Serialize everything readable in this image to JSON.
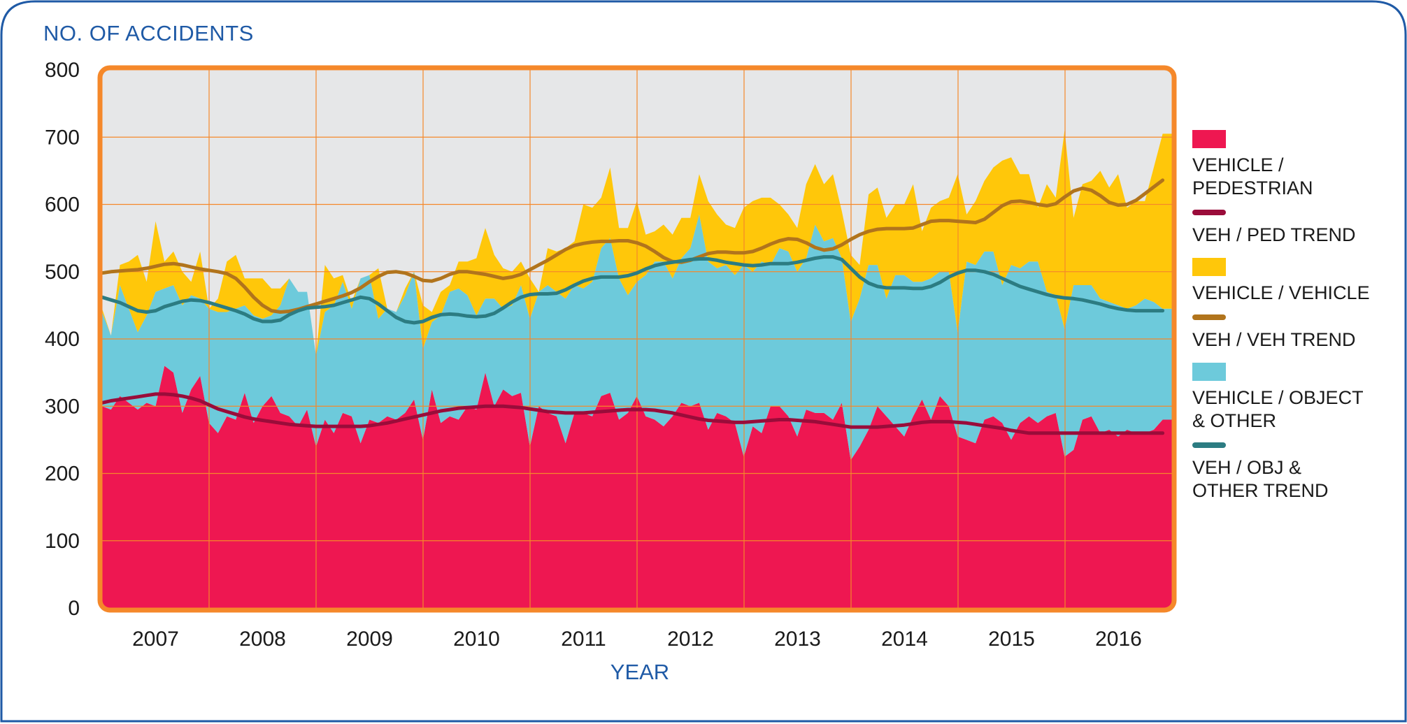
{
  "colors": {
    "pedestrian": "#ee1751",
    "vehicle": "#ffc70a",
    "object": "#6dcadb",
    "ped_trend": "#9a0c3a",
    "veh_trend": "#b1741c",
    "obj_trend": "#2c7c82",
    "plot_bg": "#e6e7e8",
    "plot_border": "#f5882a",
    "grid": "#f5882a",
    "frame": "#1f5aa6",
    "axis_text": "#1f5aa6"
  },
  "chart_data": {
    "type": "area",
    "title": "",
    "ylabel": "NO. OF ACCIDENTS",
    "xlabel": "YEAR",
    "ylim": [
      0,
      800
    ],
    "yticks": [
      0,
      100,
      200,
      300,
      400,
      500,
      600,
      700,
      800
    ],
    "xlim": [
      2006.5,
      2016.5
    ],
    "xticks": [
      2007,
      2008,
      2009,
      2010,
      2011,
      2012,
      2013,
      2014,
      2015,
      2016
    ],
    "stacked": true,
    "grid": true,
    "legend_position": "right",
    "x_start": 2006.5,
    "x_step": 0.0833,
    "series": [
      {
        "name": "VEHICLE / PEDESTRIAN",
        "kind": "area",
        "color_key": "pedestrian",
        "values": [
          300,
          295,
          315,
          305,
          295,
          305,
          300,
          360,
          350,
          290,
          325,
          345,
          275,
          260,
          285,
          280,
          320,
          275,
          300,
          315,
          290,
          285,
          270,
          295,
          240,
          280,
          260,
          290,
          285,
          245,
          280,
          275,
          285,
          280,
          290,
          310,
          250,
          325,
          275,
          285,
          280,
          300,
          295,
          350,
          300,
          325,
          315,
          320,
          240,
          300,
          290,
          285,
          245,
          290,
          290,
          285,
          315,
          320,
          280,
          290,
          315,
          285,
          280,
          270,
          285,
          305,
          300,
          305,
          265,
          290,
          285,
          275,
          225,
          270,
          260,
          300,
          300,
          285,
          255,
          295,
          290,
          290,
          280,
          305,
          220,
          240,
          265,
          300,
          285,
          270,
          255,
          285,
          310,
          280,
          315,
          300,
          255,
          250,
          245,
          280,
          285,
          275,
          250,
          275,
          285,
          275,
          285,
          290,
          225,
          235,
          280,
          285,
          260,
          265,
          255,
          265,
          260,
          260,
          265,
          280
        ]
      },
      {
        "name": "VEHICLE / OBJECT & OTHER",
        "kind": "area",
        "color_key": "object",
        "values": [
          140,
          110,
          165,
          140,
          115,
          130,
          170,
          115,
          130,
          160,
          140,
          115,
          170,
          180,
          155,
          165,
          130,
          160,
          130,
          120,
          160,
          205,
          200,
          175,
          135,
          160,
          190,
          195,
          160,
          245,
          215,
          155,
          160,
          160,
          175,
          190,
          135,
          100,
          160,
          185,
          195,
          165,
          140,
          110,
          160,
          120,
          135,
          160,
          190,
          170,
          190,
          185,
          215,
          190,
          185,
          200,
          220,
          230,
          210,
          175,
          170,
          210,
          235,
          245,
          205,
          215,
          235,
          280,
          250,
          215,
          225,
          220,
          285,
          230,
          255,
          210,
          235,
          245,
          245,
          225,
          280,
          255,
          270,
          215,
          205,
          220,
          245,
          210,
          175,
          225,
          240,
          200,
          175,
          210,
          185,
          200,
          155,
          265,
          265,
          250,
          245,
          205,
          260,
          230,
          230,
          240,
          185,
          175,
          190,
          245,
          200,
          195,
          200,
          190,
          195,
          180,
          190,
          200,
          190,
          165
        ]
      },
      {
        "name": "VEHICLE / VEHICLE",
        "kind": "area",
        "color_key": "vehicle",
        "values": [
          5,
          0,
          30,
          70,
          115,
          50,
          105,
          40,
          50,
          50,
          20,
          70,
          0,
          20,
          75,
          80,
          40,
          55,
          60,
          40,
          25,
          0,
          0,
          0,
          0,
          70,
          40,
          10,
          10,
          0,
          0,
          75,
          0,
          0,
          10,
          0,
          65,
          15,
          35,
          10,
          40,
          50,
          85,
          105,
          65,
          60,
          50,
          35,
          60,
          0,
          55,
          60,
          75,
          65,
          125,
          110,
          75,
          105,
          75,
          100,
          120,
          60,
          45,
          55,
          65,
          60,
          45,
          60,
          90,
          80,
          60,
          70,
          85,
          105,
          95,
          100,
          65,
          55,
          65,
          110,
          90,
          85,
          95,
          70,
          100,
          50,
          105,
          115,
          120,
          105,
          105,
          145,
          75,
          105,
          105,
          110,
          235,
          70,
          95,
          105,
          125,
          185,
          160,
          140,
          130,
          80,
          160,
          145,
          295,
          100,
          150,
          155,
          190,
          170,
          195,
          150,
          155,
          145,
          200,
          260
        ]
      },
      {
        "name": "VEH / PED TREND",
        "kind": "line",
        "color_key": "ped_trend",
        "values": [
          305,
          308,
          310,
          312,
          314,
          316,
          318,
          318,
          317,
          315,
          312,
          308,
          302,
          296,
          292,
          288,
          284,
          281,
          279,
          277,
          275,
          273,
          272,
          271,
          270,
          270,
          270,
          270,
          270,
          270,
          271,
          273,
          275,
          278,
          281,
          284,
          287,
          290,
          293,
          295,
          297,
          298,
          299,
          300,
          300,
          300,
          299,
          298,
          296,
          294,
          292,
          291,
          290,
          290,
          290,
          291,
          292,
          293,
          294,
          295,
          295,
          295,
          294,
          292,
          290,
          287,
          284,
          281,
          279,
          278,
          277,
          276,
          276,
          277,
          278,
          279,
          280,
          280,
          279,
          278,
          277,
          275,
          273,
          271,
          269,
          269,
          269,
          269,
          270,
          271,
          272,
          274,
          276,
          277,
          277,
          277,
          276,
          275,
          273,
          271,
          269,
          267,
          264,
          262,
          260,
          260,
          260,
          260,
          260,
          260,
          260,
          260,
          260,
          260,
          260,
          260,
          260,
          260,
          260,
          260
        ]
      },
      {
        "name": "VEH / VEH TREND",
        "kind": "line",
        "color_key": "veh_trend",
        "values": [
          498,
          500,
          501,
          502,
          503,
          505,
          508,
          511,
          512,
          510,
          507,
          504,
          502,
          500,
          497,
          490,
          477,
          462,
          450,
          442,
          440,
          441,
          444,
          448,
          452,
          456,
          460,
          464,
          469,
          476,
          485,
          493,
          499,
          500,
          498,
          493,
          487,
          486,
          490,
          496,
          500,
          500,
          498,
          496,
          493,
          490,
          492,
          496,
          503,
          510,
          517,
          525,
          533,
          539,
          542,
          544,
          545,
          545,
          546,
          546,
          543,
          538,
          530,
          521,
          515,
          514,
          517,
          522,
          527,
          529,
          529,
          528,
          528,
          530,
          535,
          541,
          546,
          549,
          548,
          543,
          536,
          532,
          534,
          540,
          548,
          555,
          560,
          563,
          564,
          564,
          564,
          565,
          570,
          575,
          576,
          576,
          575,
          574,
          573,
          578,
          588,
          598,
          604,
          605,
          603,
          600,
          598,
          601,
          611,
          620,
          624,
          621,
          613,
          603,
          599,
          600,
          606,
          616,
          626,
          636
        ]
      },
      {
        "name": "VEH / OBJ & OTHER TREND",
        "kind": "line",
        "color_key": "obj_trend",
        "values": [
          462,
          458,
          454,
          448,
          442,
          440,
          442,
          448,
          452,
          456,
          458,
          457,
          454,
          450,
          446,
          442,
          437,
          430,
          426,
          426,
          428,
          436,
          442,
          446,
          447,
          448,
          450,
          454,
          458,
          462,
          460,
          452,
          442,
          432,
          426,
          424,
          426,
          432,
          436,
          437,
          436,
          434,
          433,
          434,
          438,
          446,
          455,
          462,
          466,
          467,
          467,
          468,
          473,
          480,
          486,
          490,
          492,
          492,
          492,
          494,
          498,
          504,
          509,
          512,
          514,
          516,
          518,
          519,
          519,
          517,
          514,
          512,
          510,
          509,
          510,
          512,
          512,
          512,
          514,
          517,
          520,
          522,
          522,
          518,
          505,
          492,
          483,
          478,
          476,
          476,
          476,
          475,
          475,
          478,
          484,
          492,
          498,
          502,
          502,
          500,
          496,
          490,
          484,
          478,
          474,
          470,
          466,
          463,
          461,
          460,
          458,
          455,
          452,
          448,
          445,
          443,
          442,
          442,
          442,
          442
        ]
      }
    ]
  },
  "legend": [
    {
      "type": "swatch",
      "label": "VEHICLE / PEDESTRIAN",
      "color_key": "pedestrian"
    },
    {
      "type": "line",
      "label": "VEH / PED TREND",
      "color_key": "ped_trend"
    },
    {
      "type": "swatch",
      "label": "VEHICLE / VEHICLE",
      "color_key": "vehicle"
    },
    {
      "type": "line",
      "label": "VEH / VEH TREND",
      "color_key": "veh_trend"
    },
    {
      "type": "swatch",
      "label": "VEHICLE / OBJECT\n& OTHER",
      "color_key": "object"
    },
    {
      "type": "line",
      "label": "VEH / OBJ &\nOTHER TREND",
      "color_key": "obj_trend"
    }
  ]
}
